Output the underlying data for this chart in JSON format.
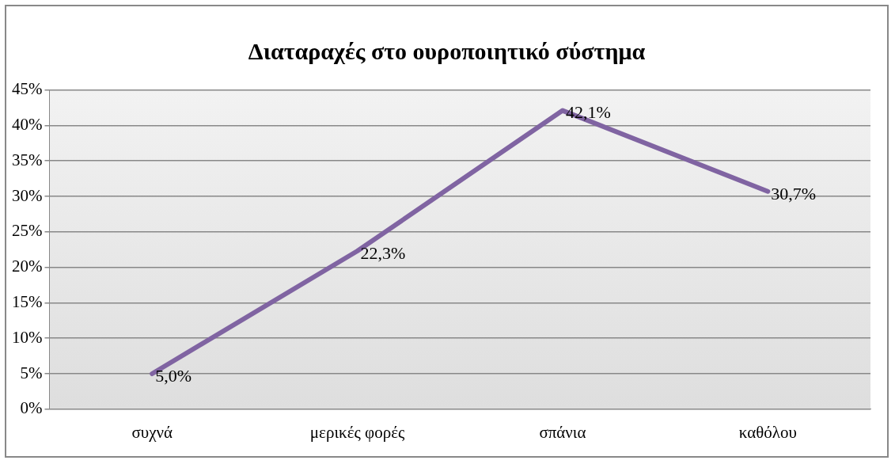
{
  "chart_data": {
    "type": "line",
    "title": "Διαταραχές στο ουροποιητικό σύστημα",
    "categories": [
      "συχνά",
      "μερικές φορές",
      "σπάνια",
      "καθόλου"
    ],
    "series": [
      {
        "color": "#8064a2",
        "values": [
          5.0,
          22.3,
          42.1,
          30.7
        ],
        "value_labels": [
          "5,0%",
          "22,3%",
          "42,1%",
          "30,7%"
        ]
      }
    ],
    "ylim": [
      0,
      45
    ],
    "yticks": [
      {
        "value": 0,
        "label": "0%"
      },
      {
        "value": 5,
        "label": "5%"
      },
      {
        "value": 10,
        "label": "10%"
      },
      {
        "value": 15,
        "label": "15%"
      },
      {
        "value": 20,
        "label": "20%"
      },
      {
        "value": 25,
        "label": "25%"
      },
      {
        "value": 30,
        "label": "30%"
      },
      {
        "value": 35,
        "label": "35%"
      },
      {
        "value": 40,
        "label": "40%"
      },
      {
        "value": 45,
        "label": "45%"
      }
    ],
    "grid": "y",
    "legend": false,
    "marker": "none",
    "line_style": "solid"
  }
}
